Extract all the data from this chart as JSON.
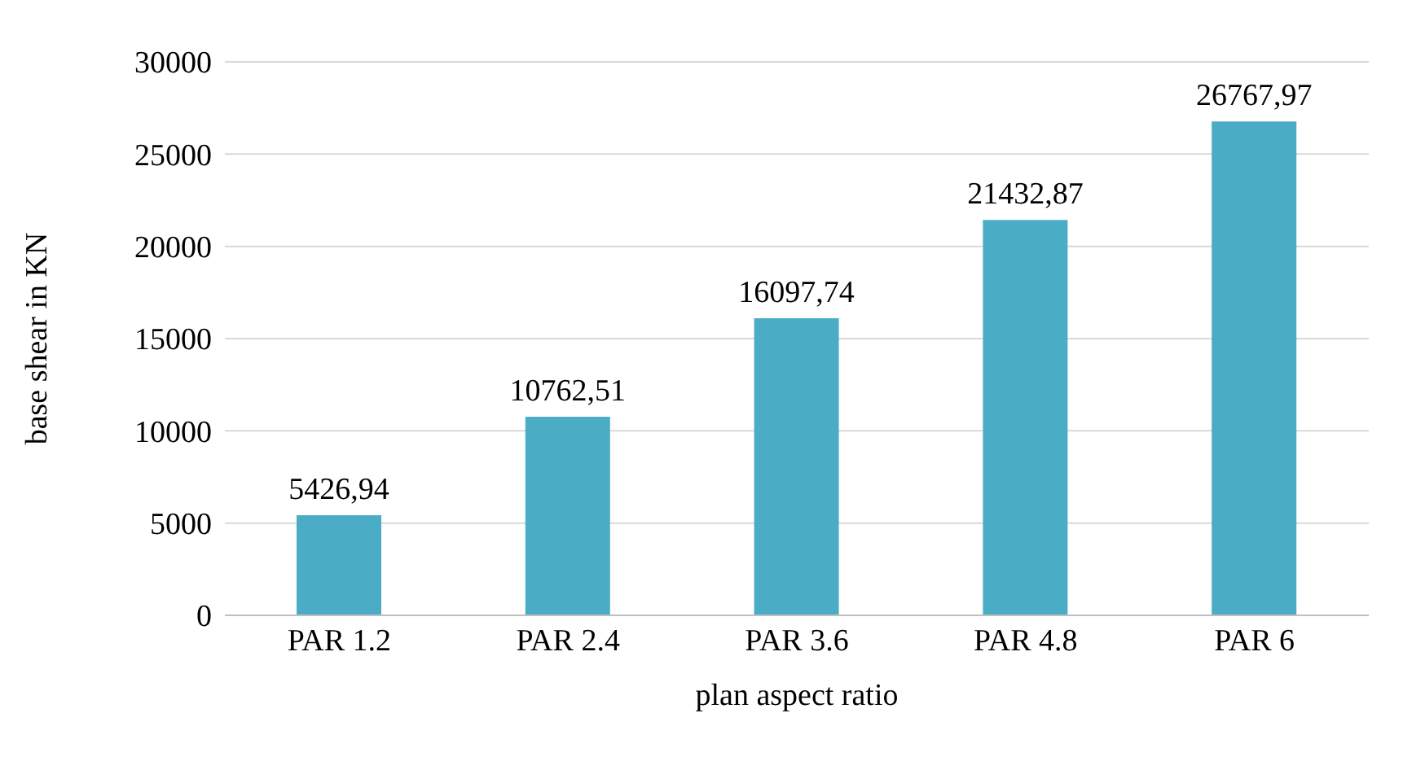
{
  "chart_data": {
    "type": "bar",
    "xlabel": "plan aspect ratio",
    "ylabel": "base shear in KN",
    "categories": [
      "PAR 1.2",
      "PAR 2.4",
      "PAR 3.6",
      "PAR 4.8",
      "PAR 6"
    ],
    "values": [
      5426.94,
      10762.51,
      16097.74,
      21432.87,
      26767.97
    ],
    "value_labels": [
      "5426,94",
      "10762,51",
      "16097,74",
      "21432,87",
      "26767,97"
    ],
    "color": "#4bacc6",
    "ylim": [
      0,
      30000
    ],
    "yticks": [
      0,
      5000,
      10000,
      15000,
      20000,
      25000,
      30000
    ],
    "grid": "y"
  }
}
